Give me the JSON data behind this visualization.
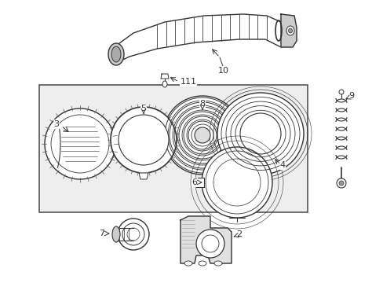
{
  "bg_color": "#ffffff",
  "line_color": "#333333",
  "box_bg": "#eeeeee",
  "fig_w": 4.89,
  "fig_h": 3.6,
  "dpi": 100
}
